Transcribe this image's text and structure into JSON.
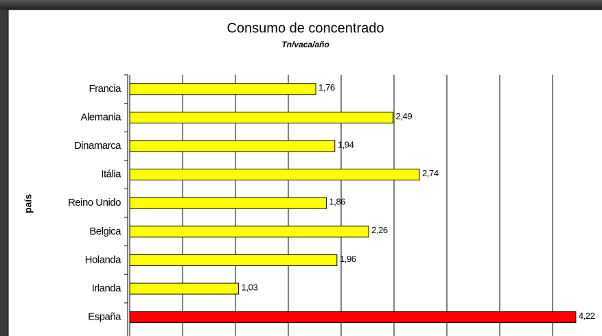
{
  "chart_data": {
    "type": "bar",
    "orientation": "horizontal",
    "title": "Consumo de concentrado",
    "subtitle": "Tn/vaca/año",
    "y_label": "país",
    "categories": [
      "Francia",
      "Alemania",
      "Dinamarca",
      "Itália",
      "Reino Unido",
      "Belgica",
      "Holanda",
      "Irlanda",
      "España"
    ],
    "values": [
      1.76,
      2.49,
      1.94,
      2.74,
      1.86,
      2.26,
      1.96,
      1.03,
      4.22
    ],
    "value_labels": [
      "1,76",
      "2,49",
      "1,94",
      "2,74",
      "1,86",
      "2,26",
      "1,96",
      "1,03",
      "4,22"
    ],
    "colors": [
      "#ffff00",
      "#ffff00",
      "#ffff00",
      "#ffff00",
      "#ffff00",
      "#ffff00",
      "#ffff00",
      "#ffff00",
      "#ff0000"
    ],
    "xlim": [
      0,
      4.5
    ],
    "xticks": [
      0,
      0.5,
      1,
      1.5,
      2,
      2.5,
      3,
      3.5,
      4,
      4.5
    ],
    "grid": true
  }
}
